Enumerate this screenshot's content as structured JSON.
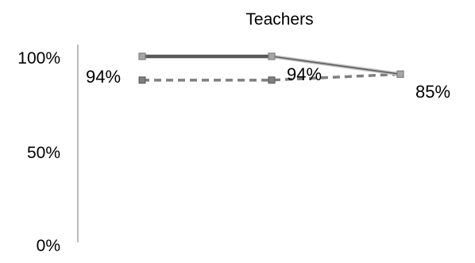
{
  "chart_data": {
    "type": "line",
    "title": "Teachers",
    "xlabel": "",
    "ylabel": "",
    "ylim": [
      0,
      100
    ],
    "y_ticks": [
      "0%",
      "50%",
      "100%"
    ],
    "y_tick_values": [
      0,
      50,
      100
    ],
    "x": [
      1,
      2,
      3
    ],
    "grid": false,
    "series": [
      {
        "style": "solid",
        "values": [
          94,
          94,
          85
        ],
        "data_labels": [
          "94%",
          "94%",
          "85%"
        ],
        "colors": {
          "line": "#595959",
          "segment_2_line": "#bfbfbf",
          "marker_fill": "#a6a6a6",
          "marker_edge": "#7f7f7f"
        }
      },
      {
        "style": "dashed",
        "values": [
          82,
          82,
          85
        ],
        "colors": {
          "line": "#7f7f7f",
          "marker_fill": "#7f7f7f",
          "marker_edge": "#595959"
        }
      }
    ]
  }
}
